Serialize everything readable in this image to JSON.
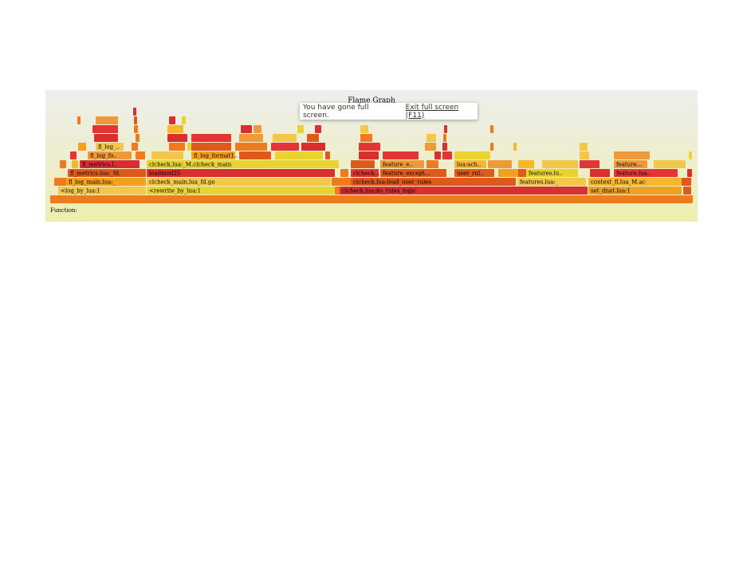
{
  "graph": {
    "title": "Flame Graph",
    "function_label": "Function:",
    "frames": [
      "<log_by_lua:1",
      "<rewrite_by_lua:1",
      "clcheck.lua:do_rules_logic",
      "set_dnat.lua:1",
      "fl_log_main.lua:_",
      "clcheck_main.lua_fd.go",
      "clcheck.lua:load_user_rules",
      "features.lua:_",
      "context_fl.lua_M.ac",
      "fl_metrics.lua:_fd.",
      "loadmod25",
      "clcheck...",
      "feature_except...",
      "user_rul..",
      "features.lu..",
      "feature.lua..",
      "fl_metrics.l..",
      "clcheck.lua:_M.clcheck_main",
      "feature_e..",
      "lua:ach..",
      "feature...",
      "fl_log_fo..",
      "fl_log_format1..",
      "fl_log_.."
    ]
  },
  "notice": {
    "message": "You have gone full screen.",
    "exit": "Exit full screen (F11)"
  }
}
